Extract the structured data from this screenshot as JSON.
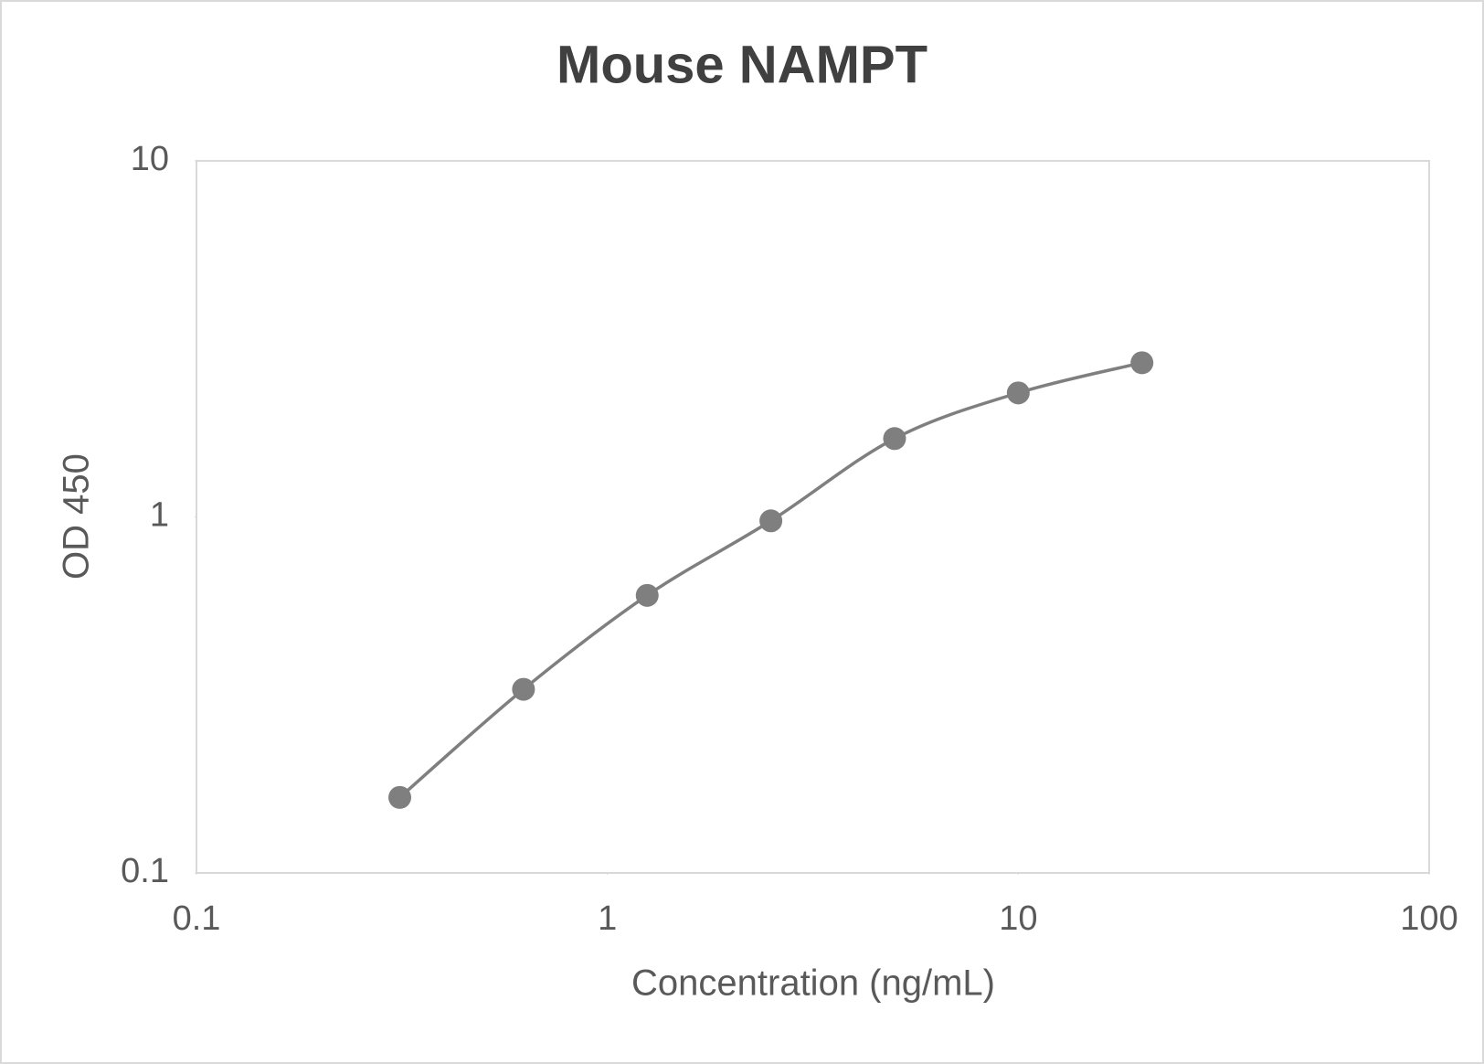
{
  "chart_data": {
    "type": "scatter",
    "title": "Mouse NAMPT",
    "xlabel": "Concentration (ng/mL)",
    "ylabel": "OD 450",
    "series": [
      {
        "name": "Mouse NAMPT",
        "color": "#7f7f7f",
        "x": [
          0.3125,
          0.625,
          1.25,
          2.5,
          5,
          10,
          20
        ],
        "values": [
          0.163,
          0.328,
          0.602,
          0.975,
          1.66,
          2.23,
          2.71
        ]
      }
    ],
    "xscale": "log",
    "yscale": "log",
    "smooth": true,
    "xlim": [
      0.1,
      100
    ],
    "xticks": [
      0.1,
      1,
      10,
      100
    ],
    "ylim": [
      0.1,
      10
    ],
    "yticks": [
      0.1,
      1,
      10
    ]
  }
}
